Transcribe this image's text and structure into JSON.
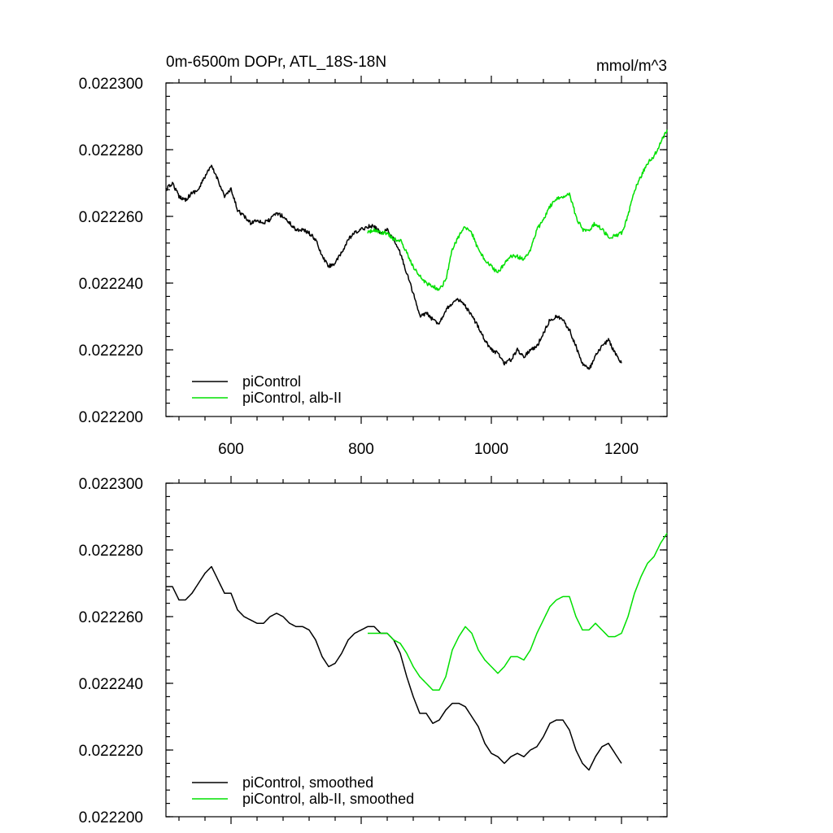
{
  "chart_data": [
    {
      "type": "line",
      "title": "0m-6500m DOPr, ATL_18S-18N",
      "units_label": "mmol/m^3",
      "xlim": [
        500,
        1270
      ],
      "ylim": [
        0.0222,
        0.0223
      ],
      "x_ticks": [
        600,
        800,
        1000,
        1200
      ],
      "x_tick_labels": [
        "600",
        "800",
        "1000",
        "1200"
      ],
      "y_ticks": [
        0.0222,
        0.02222,
        0.02224,
        0.02226,
        0.02228,
        0.0223
      ],
      "y_tick_labels": [
        "0.022200",
        "0.022220",
        "0.022240",
        "0.022260",
        "0.022280",
        "0.022300"
      ],
      "grid": false,
      "legend_position": "bottom-left",
      "noisy": true,
      "series": [
        {
          "name": "piControl",
          "color": "#000000",
          "x": [
            500,
            510,
            520,
            530,
            540,
            550,
            560,
            570,
            580,
            590,
            600,
            610,
            620,
            630,
            640,
            650,
            660,
            670,
            680,
            690,
            700,
            710,
            720,
            730,
            740,
            750,
            760,
            770,
            780,
            790,
            800,
            810,
            820,
            830,
            840,
            850,
            860,
            870,
            880,
            890,
            900,
            910,
            920,
            930,
            940,
            950,
            960,
            970,
            980,
            990,
            1000,
            1010,
            1020,
            1030,
            1040,
            1050,
            1060,
            1070,
            1080,
            1090,
            1100,
            1110,
            1120,
            1130,
            1140,
            1150,
            1160,
            1170,
            1180,
            1190,
            1200
          ],
          "y": [
            0.022268,
            0.02227,
            0.022266,
            0.022265,
            0.022267,
            0.022268,
            0.022272,
            0.022275,
            0.022271,
            0.022266,
            0.022268,
            0.022262,
            0.02226,
            0.022258,
            0.022259,
            0.022258,
            0.022259,
            0.022261,
            0.02226,
            0.022258,
            0.022256,
            0.022256,
            0.022255,
            0.022253,
            0.022248,
            0.022245,
            0.022246,
            0.022249,
            0.022253,
            0.022255,
            0.022256,
            0.022257,
            0.022257,
            0.022255,
            0.022256,
            0.022253,
            0.022249,
            0.022243,
            0.022237,
            0.02223,
            0.022231,
            0.022229,
            0.022228,
            0.022232,
            0.022234,
            0.022235,
            0.022233,
            0.02223,
            0.022227,
            0.022223,
            0.02222,
            0.022219,
            0.022216,
            0.022217,
            0.02222,
            0.022218,
            0.02222,
            0.022221,
            0.022225,
            0.022229,
            0.02223,
            0.022229,
            0.022226,
            0.022221,
            0.022216,
            0.022214,
            0.022218,
            0.022221,
            0.022223,
            0.022219,
            0.022216
          ]
        },
        {
          "name": "piControl, alb-II",
          "color": "#00e000",
          "x": [
            810,
            820,
            830,
            840,
            850,
            860,
            870,
            880,
            890,
            900,
            910,
            920,
            930,
            940,
            950,
            960,
            970,
            980,
            990,
            1000,
            1010,
            1020,
            1030,
            1040,
            1050,
            1060,
            1070,
            1080,
            1090,
            1100,
            1110,
            1120,
            1130,
            1140,
            1150,
            1160,
            1170,
            1180,
            1190,
            1200,
            1210,
            1220,
            1230,
            1240,
            1250,
            1260,
            1270
          ],
          "y": [
            0.022255,
            0.022256,
            0.022255,
            0.022255,
            0.022253,
            0.022253,
            0.022249,
            0.022245,
            0.022242,
            0.02224,
            0.022239,
            0.022238,
            0.022241,
            0.02225,
            0.022254,
            0.022257,
            0.022255,
            0.02225,
            0.022247,
            0.022245,
            0.022243,
            0.022246,
            0.022248,
            0.022248,
            0.022247,
            0.02225,
            0.022256,
            0.022259,
            0.022263,
            0.022265,
            0.022266,
            0.022267,
            0.02226,
            0.022256,
            0.022256,
            0.022258,
            0.022256,
            0.022254,
            0.022254,
            0.022255,
            0.02226,
            0.022268,
            0.022272,
            0.022276,
            0.022278,
            0.022282,
            0.022286
          ]
        }
      ],
      "legend": [
        "piControl",
        "piControl, alb-II"
      ]
    },
    {
      "type": "line",
      "xlim": [
        500,
        1270
      ],
      "ylim": [
        0.0222,
        0.0223
      ],
      "x_ticks": [
        600,
        800,
        1000,
        1200
      ],
      "x_tick_labels": [
        "",
        "",
        "",
        ""
      ],
      "y_ticks": [
        0.0222,
        0.02222,
        0.02224,
        0.02226,
        0.02228,
        0.0223
      ],
      "y_tick_labels": [
        "0.022200",
        "0.022220",
        "0.022240",
        "0.022260",
        "0.022280",
        "0.022300"
      ],
      "grid": false,
      "legend_position": "bottom-left",
      "noisy": false,
      "series": [
        {
          "name": "piControl, smoothed",
          "color": "#000000",
          "x": [
            500,
            510,
            520,
            530,
            540,
            550,
            560,
            570,
            580,
            590,
            600,
            610,
            620,
            630,
            640,
            650,
            660,
            670,
            680,
            690,
            700,
            710,
            720,
            730,
            740,
            750,
            760,
            770,
            780,
            790,
            800,
            810,
            820,
            830,
            840,
            850,
            860,
            870,
            880,
            890,
            900,
            910,
            920,
            930,
            940,
            950,
            960,
            970,
            980,
            990,
            1000,
            1010,
            1020,
            1030,
            1040,
            1050,
            1060,
            1070,
            1080,
            1090,
            1100,
            1110,
            1120,
            1130,
            1140,
            1150,
            1160,
            1170,
            1180,
            1190,
            1200
          ],
          "y": [
            0.022269,
            0.022269,
            0.022265,
            0.022265,
            0.022267,
            0.02227,
            0.022273,
            0.022275,
            0.022271,
            0.022267,
            0.022267,
            0.022262,
            0.02226,
            0.022259,
            0.022258,
            0.022258,
            0.02226,
            0.022261,
            0.02226,
            0.022258,
            0.022257,
            0.022257,
            0.022256,
            0.022253,
            0.022248,
            0.022245,
            0.022246,
            0.022249,
            0.022253,
            0.022255,
            0.022256,
            0.022257,
            0.022257,
            0.022255,
            0.022255,
            0.022253,
            0.022249,
            0.022242,
            0.022236,
            0.022231,
            0.022231,
            0.022228,
            0.022229,
            0.022232,
            0.022234,
            0.022234,
            0.022233,
            0.02223,
            0.022227,
            0.022222,
            0.022219,
            0.022218,
            0.022216,
            0.022218,
            0.022219,
            0.022218,
            0.02222,
            0.022221,
            0.022224,
            0.022228,
            0.022229,
            0.022229,
            0.022226,
            0.02222,
            0.022216,
            0.022214,
            0.022218,
            0.022221,
            0.022222,
            0.022219,
            0.022216
          ]
        },
        {
          "name": "piControl, alb-II, smoothed",
          "color": "#00e000",
          "x": [
            810,
            820,
            830,
            840,
            850,
            860,
            870,
            880,
            890,
            900,
            910,
            920,
            930,
            940,
            950,
            960,
            970,
            980,
            990,
            1000,
            1010,
            1020,
            1030,
            1040,
            1050,
            1060,
            1070,
            1080,
            1090,
            1100,
            1110,
            1120,
            1130,
            1140,
            1150,
            1160,
            1170,
            1180,
            1190,
            1200,
            1210,
            1220,
            1230,
            1240,
            1250,
            1260,
            1270
          ],
          "y": [
            0.022255,
            0.022255,
            0.022255,
            0.022255,
            0.022253,
            0.022252,
            0.022249,
            0.022245,
            0.022242,
            0.02224,
            0.022238,
            0.022238,
            0.022242,
            0.02225,
            0.022254,
            0.022257,
            0.022255,
            0.02225,
            0.022247,
            0.022245,
            0.022243,
            0.022245,
            0.022248,
            0.022248,
            0.022247,
            0.02225,
            0.022255,
            0.022259,
            0.022263,
            0.022265,
            0.022266,
            0.022266,
            0.02226,
            0.022256,
            0.022256,
            0.022258,
            0.022256,
            0.022254,
            0.022254,
            0.022255,
            0.02226,
            0.022267,
            0.022272,
            0.022276,
            0.022278,
            0.022282,
            0.022285
          ]
        }
      ],
      "legend": [
        "piControl, smoothed",
        "piControl, alb-II, smoothed"
      ]
    }
  ]
}
